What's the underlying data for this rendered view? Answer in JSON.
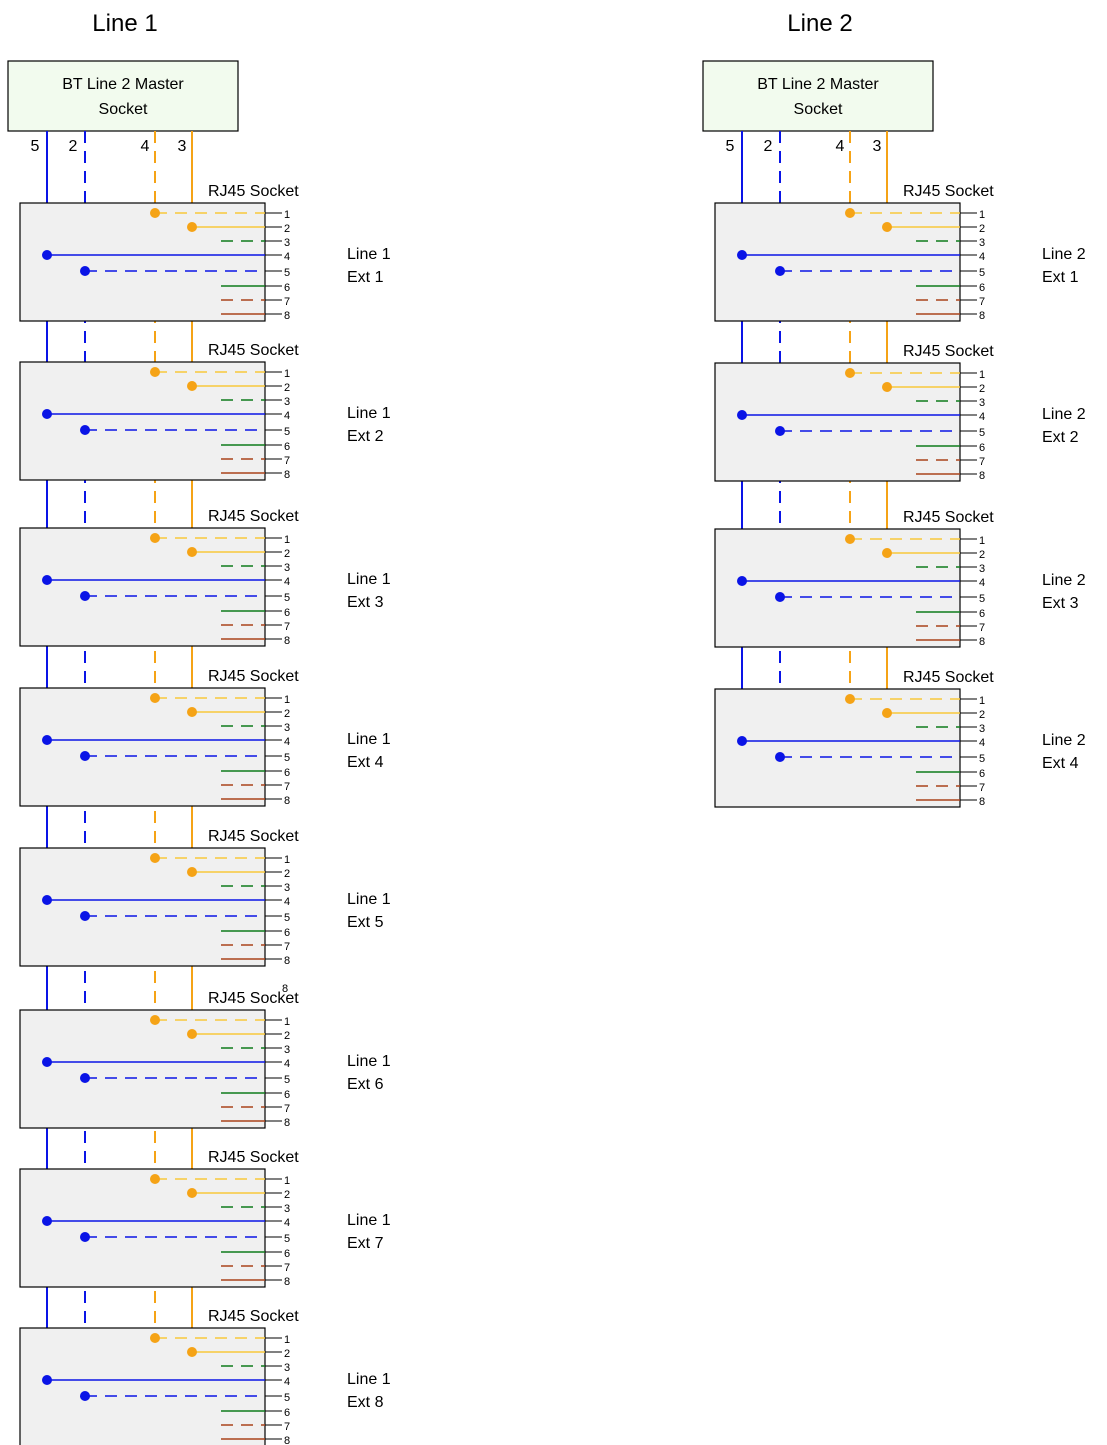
{
  "columns": [
    {
      "title": "Line 1",
      "master_label_line1": "BT Line 2 Master",
      "master_label_line2": "Socket",
      "wire_numbers": [
        "5",
        "2",
        "4",
        "3"
      ],
      "sockets": [
        {
          "label": "RJ45 Socket",
          "line": "Line 1",
          "ext": "Ext 1"
        },
        {
          "label": "RJ45 Socket",
          "line": "Line 1",
          "ext": "Ext 2"
        },
        {
          "label": "RJ45 Socket",
          "line": "Line 1",
          "ext": "Ext 3"
        },
        {
          "label": "RJ45 Socket",
          "line": "Line 1",
          "ext": "Ext 4"
        },
        {
          "label": "RJ45 Socket",
          "line": "Line 1",
          "ext": "Ext 5"
        },
        {
          "label": "RJ45 Socket",
          "line": "Line 1",
          "ext": "Ext 6"
        },
        {
          "label": "RJ45 Socket",
          "line": "Line 1",
          "ext": "Ext 7"
        },
        {
          "label": "RJ45 Socket",
          "line": "Line 1",
          "ext": "Ext 8"
        }
      ]
    },
    {
      "title": "Line 2",
      "master_label_line1": "BT Line 2 Master",
      "master_label_line2": "Socket",
      "wire_numbers": [
        "5",
        "2",
        "4",
        "3"
      ],
      "sockets": [
        {
          "label": "RJ45 Socket",
          "line": "Line 2",
          "ext": "Ext 1"
        },
        {
          "label": "RJ45 Socket",
          "line": "Line 2",
          "ext": "Ext 2"
        },
        {
          "label": "RJ45 Socket",
          "line": "Line 2",
          "ext": "Ext 3"
        },
        {
          "label": "RJ45 Socket",
          "line": "Line 2",
          "ext": "Ext 4"
        }
      ]
    }
  ],
  "pin_numbers": [
    "1",
    "2",
    "3",
    "4",
    "5",
    "6",
    "7",
    "8"
  ],
  "stray_label": "8",
  "colors": {
    "blue": "#0a14e6",
    "orange": "#f5a316",
    "light_orange": "#f5c000",
    "green": "#0d7a1a",
    "brown": "#a9431a",
    "master_fill": "#f2fbee",
    "socket_fill": "#f0f0f0"
  }
}
